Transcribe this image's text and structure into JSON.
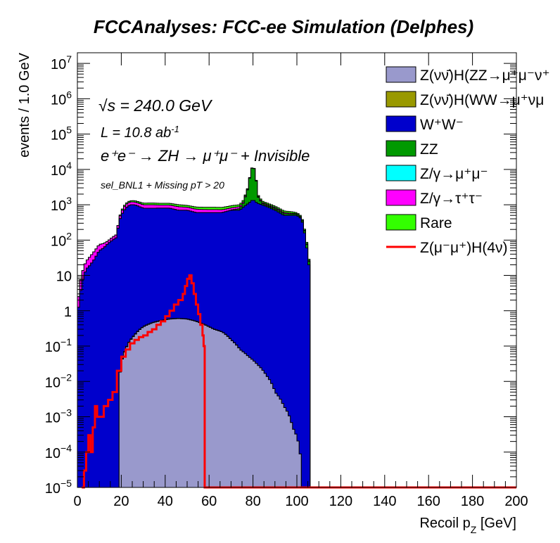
{
  "chart_data": {
    "type": "area",
    "title": "FCCAnalyses: FCC-ee Simulation (Delphes)",
    "xlabel": "Recoil p",
    "xlabel_sub": "Z",
    "xlabel_unit": " [GeV]",
    "ylabel": "events / 1.0 GeV",
    "xlim": [
      0,
      200
    ],
    "ylim": [
      1e-05,
      20000000.0
    ],
    "yscale": "log",
    "stacked": true,
    "grid": false,
    "legend_position": "top-right",
    "xticks": [
      "0",
      "20",
      "40",
      "60",
      "80",
      "100",
      "120",
      "140",
      "160",
      "180",
      "200"
    ],
    "yticks": [
      {
        "base": "10",
        "exp": "−5",
        "value": 1e-05
      },
      {
        "base": "10",
        "exp": "−4",
        "value": 0.0001
      },
      {
        "base": "10",
        "exp": "−3",
        "value": 0.001
      },
      {
        "base": "10",
        "exp": "−2",
        "value": 0.01
      },
      {
        "base": "10",
        "exp": "−1",
        "value": 0.1
      },
      {
        "base": "1",
        "exp": "",
        "value": 1
      },
      {
        "base": "10",
        "exp": "",
        "value": 10
      },
      {
        "base": "10",
        "exp": "2",
        "value": 100
      },
      {
        "base": "10",
        "exp": "3",
        "value": 1000
      },
      {
        "base": "10",
        "exp": "4",
        "value": 10000
      },
      {
        "base": "10",
        "exp": "5",
        "value": 100000
      },
      {
        "base": "10",
        "exp": "6",
        "value": 1000000
      },
      {
        "base": "10",
        "exp": "7",
        "value": 10000000
      }
    ],
    "annotations": {
      "sqrt_s": "√s = 240.0 GeV",
      "lumi": "L = 10.8 ab",
      "lumi_exp": "-1",
      "process": "e⁺e⁻ → ZH → μ⁺μ⁻ + Invisible",
      "selection": "sel_BNL1 + Missing pT > 20"
    },
    "series": [
      {
        "name": "Z(νν̄)H(ZZ→μ⁺μ⁻ν⁺",
        "color": "#9999cc",
        "x": [
          19,
          22,
          26,
          30,
          34,
          38,
          42,
          46,
          50,
          54,
          58,
          62,
          66,
          70,
          74,
          78,
          82,
          86,
          90,
          94,
          98,
          102
        ],
        "y": [
          0.006,
          0.08,
          0.2,
          0.35,
          0.45,
          0.52,
          0.58,
          0.6,
          0.58,
          0.5,
          0.4,
          0.3,
          0.25,
          0.15,
          0.08,
          0.05,
          0.03,
          0.015,
          0.005,
          0.002,
          0.0005,
          3e-05
        ]
      },
      {
        "name": "Z(νν̄)H(WW→μ⁺νμ",
        "color": "#999900",
        "x": [
          20,
          24,
          28,
          32,
          36,
          40,
          44,
          48,
          52,
          56,
          60,
          64,
          68,
          72,
          74,
          76
        ],
        "y": [
          0.001,
          0.005,
          0.008,
          0.01,
          0.015,
          0.012,
          0.015,
          0.012,
          0.01,
          0.01,
          0.008,
          0.006,
          0.004,
          0.002,
          0.0005,
          0.0001
        ]
      },
      {
        "name": "W⁺W⁻",
        "color": "#0000cc",
        "x": [
          0,
          2,
          4,
          6,
          8,
          10,
          12,
          14,
          16,
          18,
          20,
          22,
          24,
          26,
          28,
          30,
          34,
          38,
          42,
          46,
          50,
          54,
          58,
          62,
          66,
          70,
          74,
          78,
          80,
          82,
          86,
          90,
          94,
          98,
          100,
          102,
          104,
          106
        ],
        "y": [
          0,
          5,
          15,
          20,
          30,
          50,
          60,
          80,
          100,
          120,
          500,
          800,
          1000,
          1000,
          900,
          800,
          800,
          800,
          800,
          700,
          700,
          600,
          600,
          600,
          600,
          700,
          700,
          1100,
          1400,
          1100,
          900,
          700,
          500,
          500,
          500,
          400,
          80,
          0
        ]
      },
      {
        "name": "ZZ",
        "color": "#009900",
        "x": [
          70,
          74,
          76,
          78,
          80,
          82,
          84,
          86,
          90,
          94,
          98,
          100,
          102,
          104,
          106
        ],
        "y": [
          10,
          80,
          300,
          2000,
          12000,
          700,
          100,
          80,
          80,
          60,
          40,
          40,
          30,
          20,
          0
        ]
      },
      {
        "name": "Z/γ→μ⁺μ⁻",
        "color": "#00ffff",
        "x": [],
        "y": []
      },
      {
        "name": "Z/γ→τ⁺τ⁻",
        "color": "#ff00ff",
        "x": [
          0,
          2,
          4,
          6,
          8,
          10,
          12,
          14,
          16,
          18,
          20,
          22,
          24,
          26,
          28,
          30,
          34,
          38,
          42,
          46,
          50,
          54,
          58,
          62,
          66,
          70,
          74,
          78,
          82,
          86,
          90,
          94,
          98,
          100,
          102,
          104,
          106
        ],
        "y": [
          0,
          5,
          10,
          15,
          20,
          25,
          20,
          15,
          20,
          25,
          100,
          200,
          200,
          200,
          200,
          200,
          200,
          180,
          180,
          180,
          150,
          150,
          130,
          130,
          120,
          110,
          100,
          90,
          80,
          60,
          50,
          40,
          30,
          15,
          10,
          5,
          0
        ]
      },
      {
        "name": "Rare",
        "color": "#33ff00",
        "x": [
          19,
          20,
          22,
          24,
          26,
          28,
          30,
          34,
          38,
          42,
          46,
          50,
          54,
          58,
          62,
          66,
          70,
          74,
          78,
          82,
          86,
          90,
          94,
          98,
          100,
          102,
          104,
          106
        ],
        "y": [
          3,
          50,
          80,
          100,
          110,
          110,
          110,
          120,
          120,
          120,
          120,
          110,
          110,
          120,
          120,
          120,
          120,
          120,
          130,
          120,
          100,
          80,
          70,
          60,
          40,
          30,
          10,
          0
        ]
      },
      {
        "name": "Z(μ⁻μ⁺)H(4ν)",
        "color": "#ff0000",
        "style": "line",
        "x": [
          2,
          3,
          4,
          5,
          6,
          7,
          8,
          9,
          10,
          12,
          14,
          16,
          18,
          20,
          22,
          24,
          26,
          28,
          30,
          32,
          34,
          36,
          38,
          40,
          42,
          44,
          46,
          48,
          49,
          50,
          51,
          52,
          53,
          54,
          55,
          56,
          57,
          57.5,
          58,
          200
        ],
        "y": [
          1e-05,
          3e-05,
          0.0001,
          0.0003,
          0.0001,
          0.0005,
          0.002,
          0.001,
          0.001,
          0.002,
          0.003,
          0.005,
          0.02,
          0.05,
          0.08,
          0.12,
          0.15,
          0.18,
          0.2,
          0.25,
          0.3,
          0.4,
          0.5,
          0.7,
          1,
          1.5,
          2,
          3,
          5,
          8,
          10,
          6,
          3,
          1.5,
          0.8,
          0.4,
          0.2,
          0.1,
          1e-05,
          1e-05
        ]
      }
    ]
  }
}
